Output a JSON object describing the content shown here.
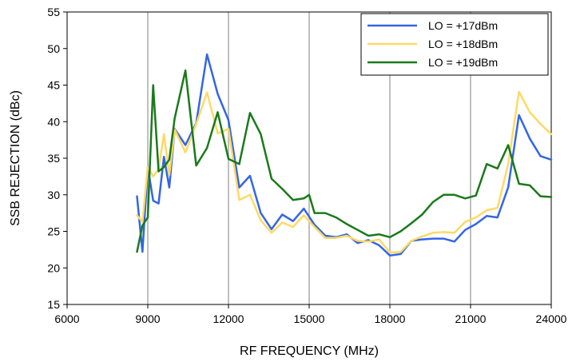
{
  "chart_data": {
    "type": "line",
    "title": "",
    "xlabel": "RF FREQUENCY (MHz)",
    "ylabel": "SSB REJECTION (dBc)",
    "xlim": [
      6000,
      24000
    ],
    "ylim": [
      15,
      55
    ],
    "x_ticks": [
      6000,
      9000,
      12000,
      15000,
      18000,
      21000,
      24000
    ],
    "y_ticks": [
      15,
      20,
      25,
      30,
      35,
      40,
      45,
      50,
      55
    ],
    "grid": "vertical",
    "legend_position": "top-right",
    "series": [
      {
        "name": "LO = +17dBm",
        "color": "#3366e6",
        "points": [
          [
            8600,
            29.8
          ],
          [
            8800,
            22.2
          ],
          [
            9000,
            33.8
          ],
          [
            9200,
            29.2
          ],
          [
            9400,
            28.8
          ],
          [
            9600,
            35.2
          ],
          [
            9800,
            31.0
          ],
          [
            10000,
            39.0
          ],
          [
            10400,
            36.8
          ],
          [
            10800,
            39.8
          ],
          [
            11200,
            49.2
          ],
          [
            11600,
            43.8
          ],
          [
            12000,
            40.2
          ],
          [
            12400,
            31.0
          ],
          [
            12800,
            32.6
          ],
          [
            13200,
            27.5
          ],
          [
            13600,
            25.3
          ],
          [
            14000,
            27.3
          ],
          [
            14400,
            26.4
          ],
          [
            14800,
            28.1
          ],
          [
            15200,
            25.9
          ],
          [
            15600,
            24.4
          ],
          [
            16000,
            24.2
          ],
          [
            16400,
            24.6
          ],
          [
            16800,
            23.4
          ],
          [
            17200,
            23.8
          ],
          [
            17600,
            23.1
          ],
          [
            18000,
            21.7
          ],
          [
            18400,
            21.9
          ],
          [
            18800,
            23.7
          ],
          [
            19200,
            23.9
          ],
          [
            19600,
            24.0
          ],
          [
            20000,
            24.0
          ],
          [
            20400,
            23.6
          ],
          [
            20800,
            25.2
          ],
          [
            21200,
            26.0
          ],
          [
            21600,
            27.1
          ],
          [
            22000,
            26.9
          ],
          [
            22400,
            31.0
          ],
          [
            22800,
            40.9
          ],
          [
            23200,
            37.7
          ],
          [
            23600,
            35.3
          ],
          [
            24000,
            34.8
          ]
        ]
      },
      {
        "name": "LO = +18dBm",
        "color": "#ffd966",
        "points": [
          [
            8600,
            27.2
          ],
          [
            8800,
            26.3
          ],
          [
            9000,
            33.8
          ],
          [
            9200,
            32.5
          ],
          [
            9400,
            33.5
          ],
          [
            9600,
            38.3
          ],
          [
            9800,
            32.7
          ],
          [
            10000,
            38.9
          ],
          [
            10400,
            35.8
          ],
          [
            10800,
            39.7
          ],
          [
            11200,
            44.0
          ],
          [
            11600,
            38.4
          ],
          [
            12000,
            39.0
          ],
          [
            12400,
            29.3
          ],
          [
            12800,
            30.0
          ],
          [
            13200,
            26.5
          ],
          [
            13600,
            24.8
          ],
          [
            14000,
            26.2
          ],
          [
            14400,
            25.6
          ],
          [
            14800,
            27.2
          ],
          [
            15200,
            25.6
          ],
          [
            15600,
            24.1
          ],
          [
            16000,
            24.1
          ],
          [
            16400,
            24.4
          ],
          [
            16800,
            23.7
          ],
          [
            17200,
            23.6
          ],
          [
            17600,
            23.9
          ],
          [
            18000,
            22.1
          ],
          [
            18400,
            22.2
          ],
          [
            18800,
            23.7
          ],
          [
            19200,
            24.3
          ],
          [
            19600,
            24.8
          ],
          [
            20000,
            24.9
          ],
          [
            20400,
            24.8
          ],
          [
            20800,
            26.3
          ],
          [
            21200,
            26.9
          ],
          [
            21600,
            27.9
          ],
          [
            22000,
            28.2
          ],
          [
            22400,
            34.2
          ],
          [
            22800,
            44.1
          ],
          [
            23200,
            41.3
          ],
          [
            23600,
            39.7
          ],
          [
            24000,
            38.3
          ]
        ]
      },
      {
        "name": "LO = +19dBm",
        "color": "#1a7a1a",
        "points": [
          [
            8600,
            22.2
          ],
          [
            8800,
            25.8
          ],
          [
            9000,
            26.9
          ],
          [
            9200,
            45.0
          ],
          [
            9400,
            33.2
          ],
          [
            9600,
            33.8
          ],
          [
            9800,
            34.8
          ],
          [
            10000,
            40.5
          ],
          [
            10400,
            47.0
          ],
          [
            10800,
            34.0
          ],
          [
            11200,
            36.4
          ],
          [
            11600,
            41.3
          ],
          [
            12000,
            34.9
          ],
          [
            12400,
            34.2
          ],
          [
            12800,
            41.2
          ],
          [
            13200,
            38.3
          ],
          [
            13600,
            32.2
          ],
          [
            14000,
            30.8
          ],
          [
            14400,
            29.3
          ],
          [
            14800,
            29.5
          ],
          [
            15000,
            30.0
          ],
          [
            15200,
            27.5
          ],
          [
            15600,
            27.5
          ],
          [
            16000,
            26.9
          ],
          [
            16400,
            26.0
          ],
          [
            16800,
            25.2
          ],
          [
            17200,
            24.4
          ],
          [
            17600,
            24.6
          ],
          [
            18000,
            24.2
          ],
          [
            18400,
            25.0
          ],
          [
            18800,
            26.1
          ],
          [
            19200,
            27.3
          ],
          [
            19600,
            29.0
          ],
          [
            20000,
            30.0
          ],
          [
            20400,
            30.0
          ],
          [
            20800,
            29.5
          ],
          [
            21200,
            29.9
          ],
          [
            21600,
            34.2
          ],
          [
            22000,
            33.6
          ],
          [
            22400,
            36.8
          ],
          [
            22800,
            31.5
          ],
          [
            23200,
            31.3
          ],
          [
            23600,
            29.8
          ],
          [
            24000,
            29.7
          ]
        ]
      }
    ]
  }
}
